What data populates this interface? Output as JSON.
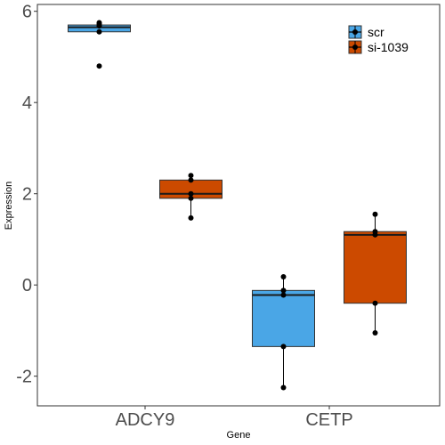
{
  "chart_data": {
    "type": "boxplot",
    "xlabel": "Gene",
    "ylabel": "Expression",
    "ylim": [
      -2.65,
      6.15
    ],
    "yticks": [
      -2,
      0,
      2,
      4,
      6
    ],
    "ytick_labels": [
      "-2",
      "0",
      "2",
      "4",
      "6"
    ],
    "categories": [
      "ADCY9",
      "CETP"
    ],
    "legend_position": "top-right",
    "grid": false,
    "series": [
      {
        "name": "scr",
        "color": "#4aa6e6",
        "boxes": [
          {
            "category": "ADCY9",
            "q1": 5.55,
            "median": 5.65,
            "q3": 5.7,
            "whisker_low": 5.55,
            "whisker_high": 5.75,
            "points": [
              5.75,
              5.72,
              5.68,
              5.55,
              4.8
            ]
          },
          {
            "category": "CETP",
            "q1": -1.35,
            "median": -0.22,
            "q3": -0.12,
            "whisker_low": -2.25,
            "whisker_high": 0.18,
            "points": [
              0.18,
              -0.12,
              -0.22,
              -1.35,
              -2.25
            ]
          }
        ]
      },
      {
        "name": "si-1039",
        "color": "#cc4a00",
        "boxes": [
          {
            "category": "ADCY9",
            "q1": 1.9,
            "median": 2.0,
            "q3": 2.3,
            "whisker_low": 1.47,
            "whisker_high": 2.4,
            "points": [
              2.4,
              2.3,
              2.0,
              1.9,
              1.47
            ]
          },
          {
            "category": "CETP",
            "q1": -0.4,
            "median": 1.1,
            "q3": 1.17,
            "whisker_low": -1.05,
            "whisker_high": 1.55,
            "points": [
              1.55,
              1.17,
              1.1,
              -0.4,
              -1.05
            ]
          }
        ]
      }
    ]
  }
}
